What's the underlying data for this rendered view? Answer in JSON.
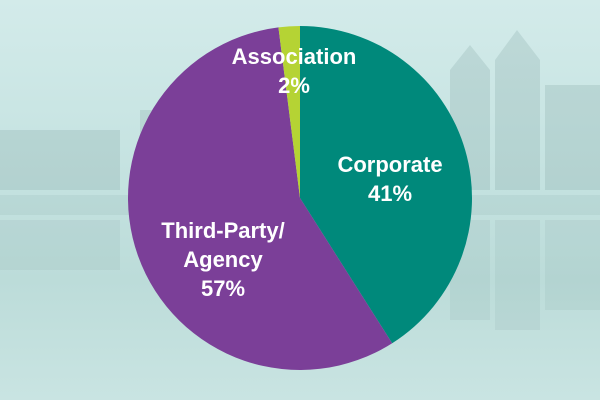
{
  "chart_data": {
    "type": "pie",
    "title": "",
    "slices": [
      {
        "label": "Corporate",
        "value": 41,
        "value_label": "41%",
        "color": "#00897b"
      },
      {
        "label": "Third-Party/ Agency",
        "value": 57,
        "value_label": "57%",
        "color": "#7b3f98"
      },
      {
        "label": "Association",
        "value": 2,
        "value_label": "2%",
        "color": "#b5d334"
      }
    ],
    "start_angle": "12 o'clock",
    "direction": "clockwise",
    "legend": "none (labels drawn on slices)"
  },
  "background": {
    "description_color": "#c9e4e2"
  }
}
